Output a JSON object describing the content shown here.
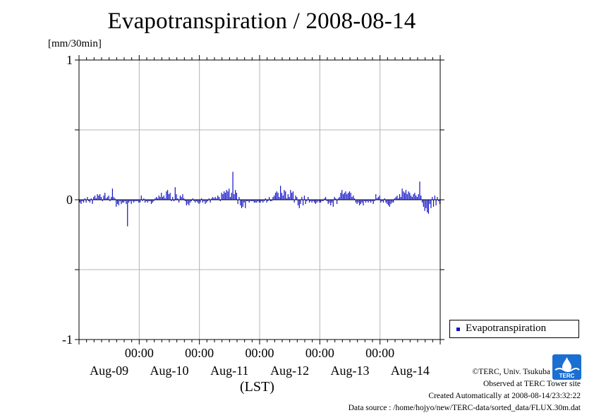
{
  "page": {
    "title": "Evapotranspiration / 2008-08-14",
    "unit_label": "[mm/30min]",
    "x_axis_title": "(LST)",
    "credit": "©TERC, Univ. Tsukuba",
    "observed": "Observed at TERC Tower site",
    "created": "Created Automatically at 2008-08-14/23:32:22",
    "data_source": "Data source : /home/hojyo/new/TERC-data/sorted_data/FLUX.30m.dat",
    "logo_text": "TERC"
  },
  "colors": {
    "series": "#1010c8",
    "grid": "#b4b4b4",
    "axis": "#000000"
  },
  "chart_data": {
    "type": "bar",
    "title": "Evapotranspiration / 2008-08-14",
    "ylabel": "[mm/30min]",
    "xlabel": "(LST)",
    "ylim": [
      -1,
      1
    ],
    "yticks": [
      {
        "value": 1,
        "label": "1"
      },
      {
        "value": 0.5,
        "label": ""
      },
      {
        "value": 0,
        "label": "0"
      },
      {
        "value": -0.5,
        "label": ""
      },
      {
        "value": -1,
        "label": "-1"
      }
    ],
    "xrange_days": [
      0,
      6
    ],
    "time_ticks": [
      {
        "day": 1,
        "label": "00:00"
      },
      {
        "day": 2,
        "label": "00:00"
      },
      {
        "day": 3,
        "label": "00:00"
      },
      {
        "day": 4,
        "label": "00:00"
      },
      {
        "day": 5,
        "label": "00:00"
      }
    ],
    "date_labels": [
      {
        "day": 0.5,
        "label": "Aug-09"
      },
      {
        "day": 1.5,
        "label": "Aug-10"
      },
      {
        "day": 2.5,
        "label": "Aug-11"
      },
      {
        "day": 3.5,
        "label": "Aug-12"
      },
      {
        "day": 4.5,
        "label": "Aug-13"
      },
      {
        "day": 5.5,
        "label": "Aug-14"
      }
    ],
    "grid": true,
    "legend_position": "bottom-right, outside plot",
    "series": [
      {
        "name": "Evapotranspiration",
        "color": "#1010c8",
        "interval_per_day": 48,
        "values": [
          -0.02,
          -0.03,
          -0.01,
          -0.02,
          0.01,
          -0.02,
          0.02,
          -0.01,
          -0.02,
          0.01,
          -0.03,
          0.02,
          0.03,
          0.01,
          0.04,
          0.03,
          0.04,
          0.02,
          -0.01,
          0.03,
          0.05,
          0.01,
          0.02,
          0.03,
          -0.01,
          0.02,
          0.08,
          0.02,
          0.01,
          -0.05,
          -0.03,
          -0.04,
          -0.01,
          -0.03,
          -0.02,
          -0.02,
          -0.01,
          -0.03,
          -0.19,
          -0.02,
          -0.01,
          -0.03,
          -0.01,
          -0.02,
          -0.01,
          -0.01,
          -0.01,
          -0.02,
          -0.02,
          0.03,
          -0.01,
          0.01,
          -0.02,
          -0.01,
          -0.02,
          -0.01,
          -0.01,
          -0.03,
          -0.02,
          -0.01,
          0.01,
          0.02,
          0.01,
          0.03,
          0.02,
          0.05,
          0.02,
          0.03,
          0.01,
          0.06,
          0.07,
          0.04,
          0.05,
          -0.01,
          0.02,
          -0.01,
          0.09,
          0.04,
          0.01,
          -0.02,
          0.03,
          0.02,
          0.04,
          0.01,
          -0.01,
          -0.04,
          -0.03,
          -0.04,
          -0.02,
          -0.01,
          0.01,
          -0.01,
          -0.02,
          -0.01,
          -0.02,
          -0.03,
          -0.02,
          0.01,
          -0.02,
          -0.01,
          -0.03,
          -0.02,
          -0.01,
          0.01,
          -0.02,
          0.01,
          0.02,
          0.01,
          0.02,
          0.01,
          0.03,
          0.02,
          -0.01,
          0.05,
          0.04,
          0.06,
          0.05,
          0.07,
          0.06,
          0.08,
          0.02,
          0.05,
          0.2,
          0.04,
          0.07,
          0.05,
          -0.03,
          0.02,
          -0.04,
          -0.06,
          -0.05,
          -0.02,
          -0.06,
          -0.01,
          -0.01,
          -0.02,
          -0.01,
          -0.01,
          -0.01,
          -0.02,
          -0.02,
          -0.02,
          -0.01,
          -0.02,
          -0.02,
          -0.01,
          -0.02,
          -0.01,
          0.01,
          -0.02,
          -0.01,
          0.02,
          -0.01,
          -0.01,
          0.02,
          0.03,
          0.05,
          0.06,
          0.05,
          0.02,
          0.1,
          0.05,
          0.03,
          0.07,
          0.06,
          0.01,
          0.04,
          0.02,
          0.07,
          0.05,
          0.06,
          -0.02,
          0.03,
          0.02,
          -0.04,
          -0.06,
          -0.03,
          0.02,
          -0.04,
          0.03,
          -0.03,
          -0.01,
          0.02,
          -0.02,
          -0.01,
          -0.02,
          -0.01,
          -0.02,
          -0.03,
          -0.02,
          -0.01,
          -0.02,
          -0.02,
          -0.01,
          -0.01,
          0.01,
          0.02,
          -0.01,
          -0.03,
          -0.02,
          -0.04,
          -0.02,
          -0.05,
          0.02,
          0.01,
          -0.03,
          0.01,
          0.02,
          0.05,
          0.07,
          0.04,
          0.05,
          0.06,
          0.04,
          0.05,
          0.06,
          0.05,
          0.02,
          0.03,
          0.01,
          -0.02,
          -0.03,
          -0.02,
          -0.04,
          -0.03,
          -0.02,
          -0.04,
          -0.01,
          -0.02,
          -0.01,
          -0.02,
          -0.01,
          -0.02,
          -0.01,
          -0.03,
          -0.01,
          0.04,
          0.01,
          0.02,
          0.03,
          -0.02,
          -0.01,
          -0.02,
          0.01,
          -0.02,
          -0.03,
          -0.04,
          -0.05,
          -0.03,
          -0.02,
          -0.02,
          0.01,
          0.02,
          0.03,
          0.01,
          0.04,
          0.02,
          0.08,
          0.06,
          0.05,
          0.07,
          0.04,
          0.06,
          0.05,
          0.03,
          0.02,
          0.04,
          0.05,
          0.03,
          0.02,
          0.04,
          0.13,
          0.03,
          -0.02,
          -0.05,
          -0.08,
          -0.06,
          -0.09,
          -0.1,
          -0.03,
          -0.06,
          0.02,
          -0.05,
          0.03,
          -0.04,
          0.02,
          -0.01,
          -0.03
        ]
      }
    ]
  }
}
